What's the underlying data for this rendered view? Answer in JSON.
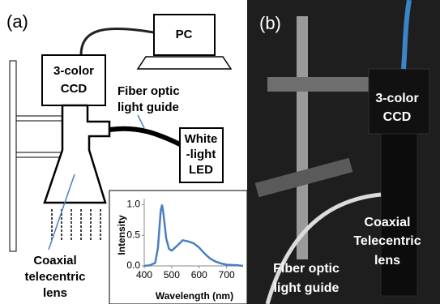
{
  "panel_a": {
    "label": "(a)",
    "pc": "PC",
    "ccd": [
      "3-color",
      "CCD"
    ],
    "fiber": [
      "Fiber optic",
      "light guide"
    ],
    "led": [
      "White",
      "-light",
      "LED"
    ],
    "lens": [
      "Coaxial",
      "telecentric",
      "lens"
    ]
  },
  "panel_b": {
    "label": "(b)",
    "ccd": [
      "3-color",
      "CCD"
    ],
    "lens": [
      "Coaxial",
      "Telecentric",
      "lens"
    ],
    "fiber": [
      "Fiber optic",
      "light guide"
    ]
  },
  "chart_data": {
    "type": "line",
    "xlabel": "Wavelength (nm)",
    "ylabel": "Intensity",
    "x": [
      400,
      420,
      440,
      450,
      460,
      465,
      470,
      480,
      490,
      500,
      520,
      540,
      560,
      580,
      600,
      620,
      640,
      660,
      680,
      700,
      740,
      760
    ],
    "values": [
      0,
      0.01,
      0.05,
      0.3,
      0.9,
      1.0,
      0.85,
      0.45,
      0.28,
      0.25,
      0.33,
      0.42,
      0.4,
      0.37,
      0.3,
      0.2,
      0.12,
      0.07,
      0.04,
      0.02,
      0.01,
      0
    ],
    "color": "#4a7fc1",
    "xlim": [
      400,
      760
    ],
    "ylim": [
      0,
      1.1
    ],
    "xticks": [
      400,
      500,
      600,
      700
    ],
    "yticks": [
      {
        "value": 0,
        "label": "0.0"
      },
      {
        "value": 0.5,
        "label": "0.5"
      },
      {
        "value": 1,
        "label": "1.0"
      }
    ]
  }
}
